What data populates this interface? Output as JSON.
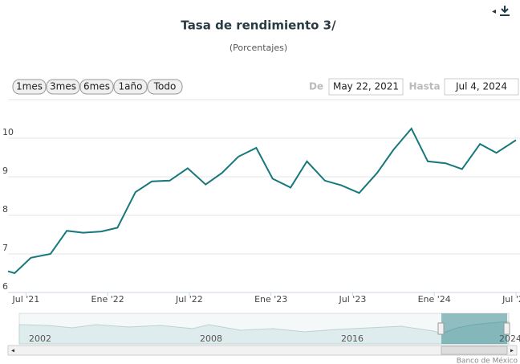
{
  "chart_data": {
    "type": "line",
    "title": "Tasa de rendimiento 3/",
    "subtitle": "(Porcentajes)",
    "x": [
      2021.39,
      2021.43,
      2021.53,
      2021.65,
      2021.75,
      2021.85,
      2021.96,
      2022.06,
      2022.17,
      2022.27,
      2022.38,
      2022.49,
      2022.6,
      2022.7,
      2022.8,
      2022.91,
      2023.01,
      2023.12,
      2023.22,
      2023.33,
      2023.43,
      2023.54,
      2023.65,
      2023.75,
      2023.86,
      2023.96,
      2024.07,
      2024.17,
      2024.28,
      2024.38,
      2024.5
    ],
    "values": [
      6.55,
      6.5,
      6.9,
      7.0,
      7.6,
      7.55,
      7.58,
      7.68,
      8.6,
      8.88,
      8.9,
      9.22,
      8.8,
      9.1,
      9.52,
      9.75,
      8.95,
      8.72,
      9.4,
      8.9,
      8.78,
      8.58,
      9.1,
      9.7,
      10.25,
      9.4,
      9.35,
      9.2,
      9.85,
      9.62,
      9.95
    ],
    "color": "#17787c",
    "xlim": [
      2021.39,
      2024.51
    ],
    "xticks": [
      {
        "value": 2021.5,
        "label": "Jul '21"
      },
      {
        "value": 2022.0,
        "label": "Ene '22"
      },
      {
        "value": 2022.5,
        "label": "Jul '22"
      },
      {
        "value": 2023.0,
        "label": "Ene '23"
      },
      {
        "value": 2023.5,
        "label": "Jul '23"
      },
      {
        "value": 2024.0,
        "label": "Ene '24"
      },
      {
        "value": 2024.5,
        "label": "Jul '24"
      }
    ],
    "ylim": [
      6,
      11
    ],
    "yticks": [
      6,
      7,
      8,
      9,
      10
    ],
    "grid": true
  },
  "range_selector": {
    "buttons": [
      "1mes",
      "3mes",
      "6mes",
      "1año",
      "Todo"
    ],
    "from_label": "De",
    "from": "May 22, 2021",
    "to_label": "Hasta",
    "to": "Jul 4, 2024"
  },
  "navigator": {
    "labels": [
      "2002",
      "2008",
      "2016",
      "2024"
    ]
  },
  "credits": "Banco de México"
}
